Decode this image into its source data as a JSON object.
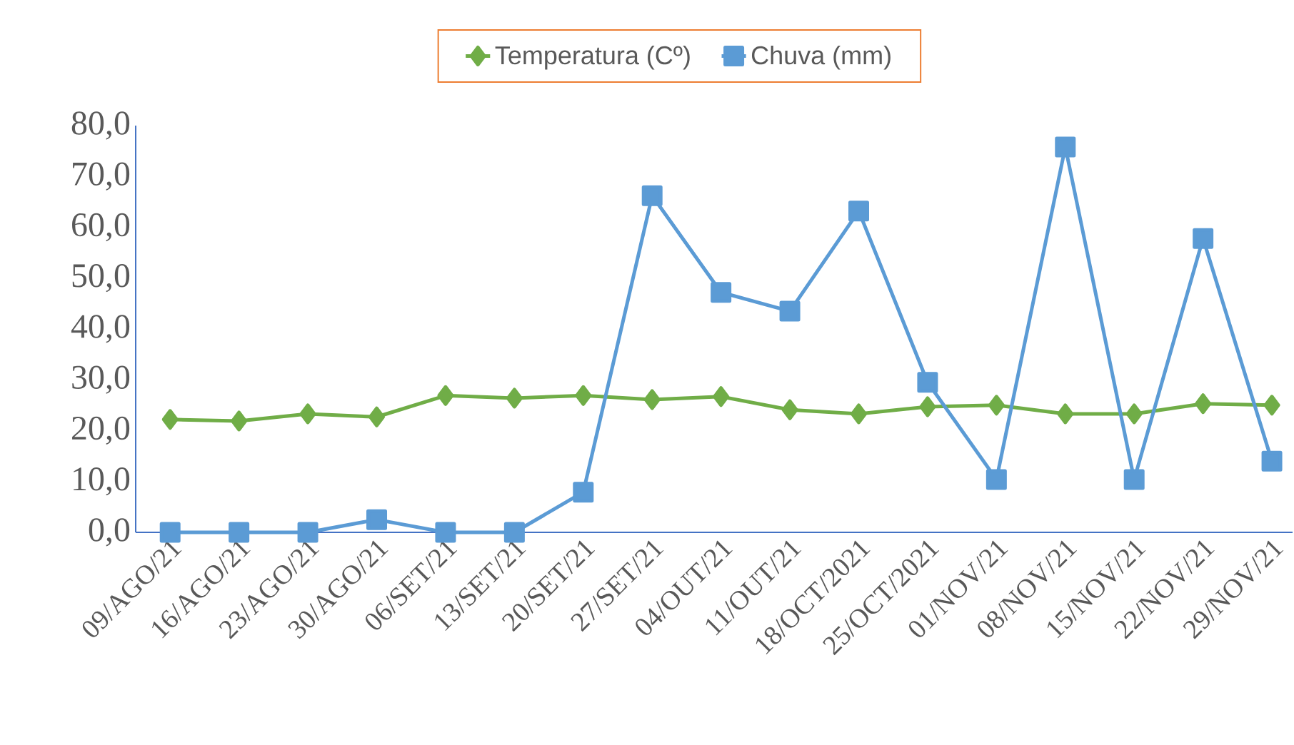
{
  "chart_data": {
    "type": "line",
    "categories": [
      "09/AGO/21",
      "16/AGO/21",
      "23/AGO/21",
      "30/AGO/21",
      "06/SET/21",
      "13/SET/21",
      "20/SET/21",
      "27/SET/21",
      "04/OUT/21",
      "11/OUT/21",
      "18/OCT/2021",
      "25/OCT/2021",
      "01/NOV/21",
      "08/NOV/21",
      "15/NOV/21",
      "22/NOV/21",
      "29/NOV/21"
    ],
    "series": [
      {
        "name": "Temperatura (Cº)",
        "color": "#70ad47",
        "marker": "diamond",
        "values": [
          22.2,
          21.9,
          23.3,
          22.7,
          26.9,
          26.4,
          26.9,
          26.1,
          26.7,
          24.1,
          23.3,
          24.7,
          25.0,
          23.3,
          23.3,
          25.3,
          25.0
        ]
      },
      {
        "name": "Chuva (mm)",
        "color": "#5b9bd5",
        "marker": "square",
        "values": [
          0,
          0,
          0,
          2.5,
          0,
          0,
          7.9,
          66.2,
          47.2,
          43.5,
          63.2,
          29.5,
          10.4,
          75.8,
          10.4,
          57.8,
          14.0
        ]
      }
    ],
    "ylim": [
      0,
      80
    ],
    "yticks": [
      {
        "value": 0,
        "label": "0,0"
      },
      {
        "value": 10,
        "label": "10,0"
      },
      {
        "value": 20,
        "label": "20,0"
      },
      {
        "value": 30,
        "label": "30,0"
      },
      {
        "value": 40,
        "label": "40,0"
      },
      {
        "value": 50,
        "label": "50,0"
      },
      {
        "value": 60,
        "label": "60,0"
      },
      {
        "value": 70,
        "label": "70,0"
      },
      {
        "value": 80,
        "label": "80,0"
      }
    ],
    "grid": false,
    "legend": "top",
    "line_style": "solid"
  }
}
